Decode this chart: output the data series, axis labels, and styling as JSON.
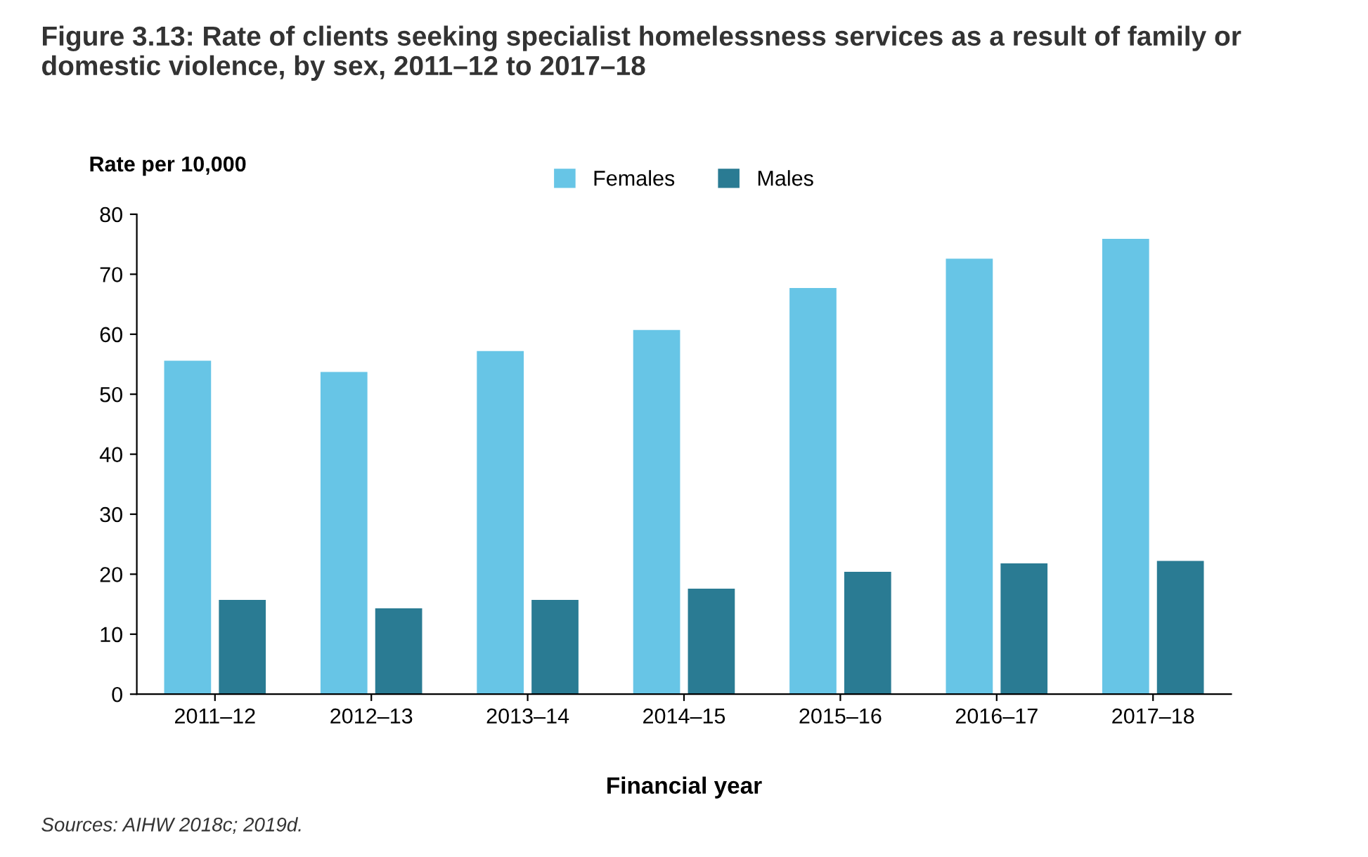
{
  "chart_data": {
    "type": "bar",
    "title": "Figure 3.13: Rate of clients seeking specialist homelessness services as a result of family or domestic violence, by sex, 2011–12 to 2017–18",
    "ylabel": "Rate per 10,000",
    "xlabel": "Financial year",
    "categories": [
      "2011–12",
      "2012–13",
      "2013–14",
      "2014–15",
      "2015–16",
      "2016–17",
      "2017–18"
    ],
    "series": [
      {
        "name": "Females",
        "color": "#67c5e6",
        "values": [
          55.6,
          53.7,
          57.2,
          60.7,
          67.7,
          72.6,
          75.9
        ]
      },
      {
        "name": "Males",
        "color": "#2a7b93",
        "values": [
          15.7,
          14.3,
          15.7,
          17.6,
          20.4,
          21.8,
          22.2
        ]
      }
    ],
    "ylim": [
      0,
      80
    ],
    "yticks": [
      0,
      10,
      20,
      30,
      40,
      50,
      60,
      70,
      80
    ],
    "grid": false,
    "legend": "top",
    "annotations": [
      "Sources: AIHW 2018c; 2019d."
    ]
  }
}
